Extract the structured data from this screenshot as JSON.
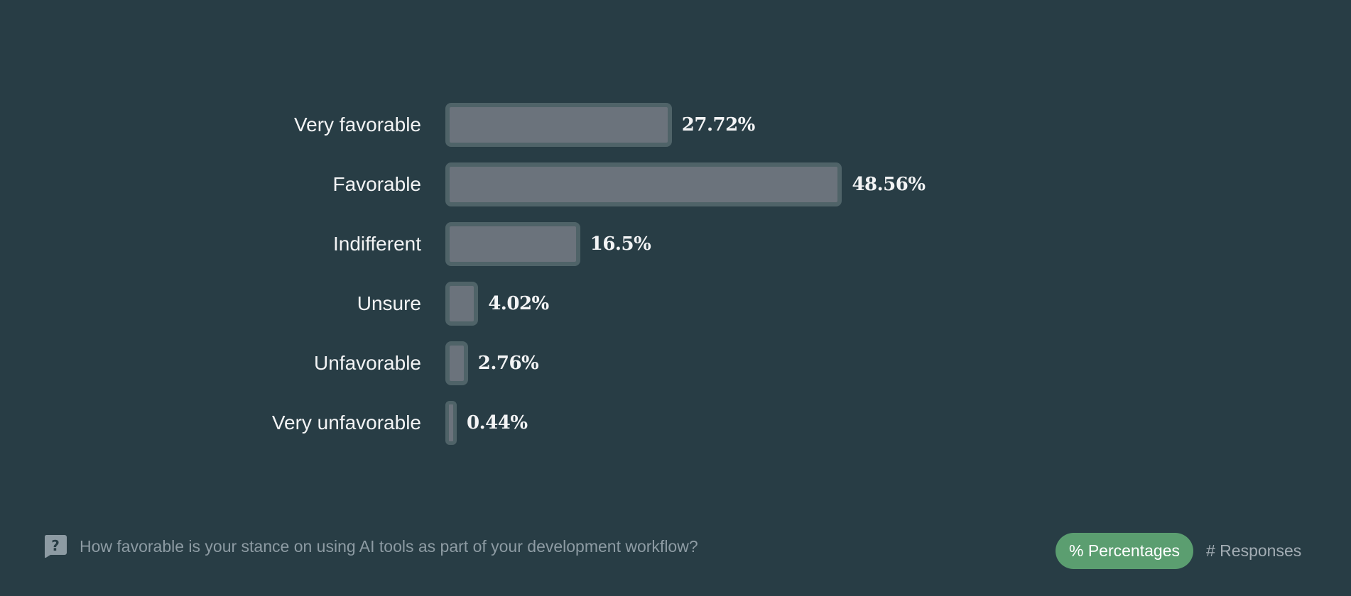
{
  "chart_data": {
    "type": "bar",
    "orientation": "horizontal",
    "categories": [
      "Very favorable",
      "Favorable",
      "Indifferent",
      "Unsure",
      "Unfavorable",
      "Very unfavorable"
    ],
    "values": [
      27.72,
      48.56,
      16.5,
      4.02,
      2.76,
      0.44
    ],
    "value_labels": [
      "27.72%",
      "48.56%",
      "16.5%",
      "4.02%",
      "2.76%",
      "0.44%"
    ],
    "unit": "%",
    "grid": false
  },
  "footer": {
    "question": "How favorable is your stance on using AI tools as part of your development workflow?",
    "question_icon": "question-bubble-icon",
    "toggle": {
      "percentages": "% Percentages",
      "responses": "# Responses",
      "active": "percentages"
    }
  },
  "colors": {
    "background": "#283d45",
    "bar_fill": "#6b737c",
    "bar_border": "#4f6368",
    "accent": "#5b9e70"
  }
}
